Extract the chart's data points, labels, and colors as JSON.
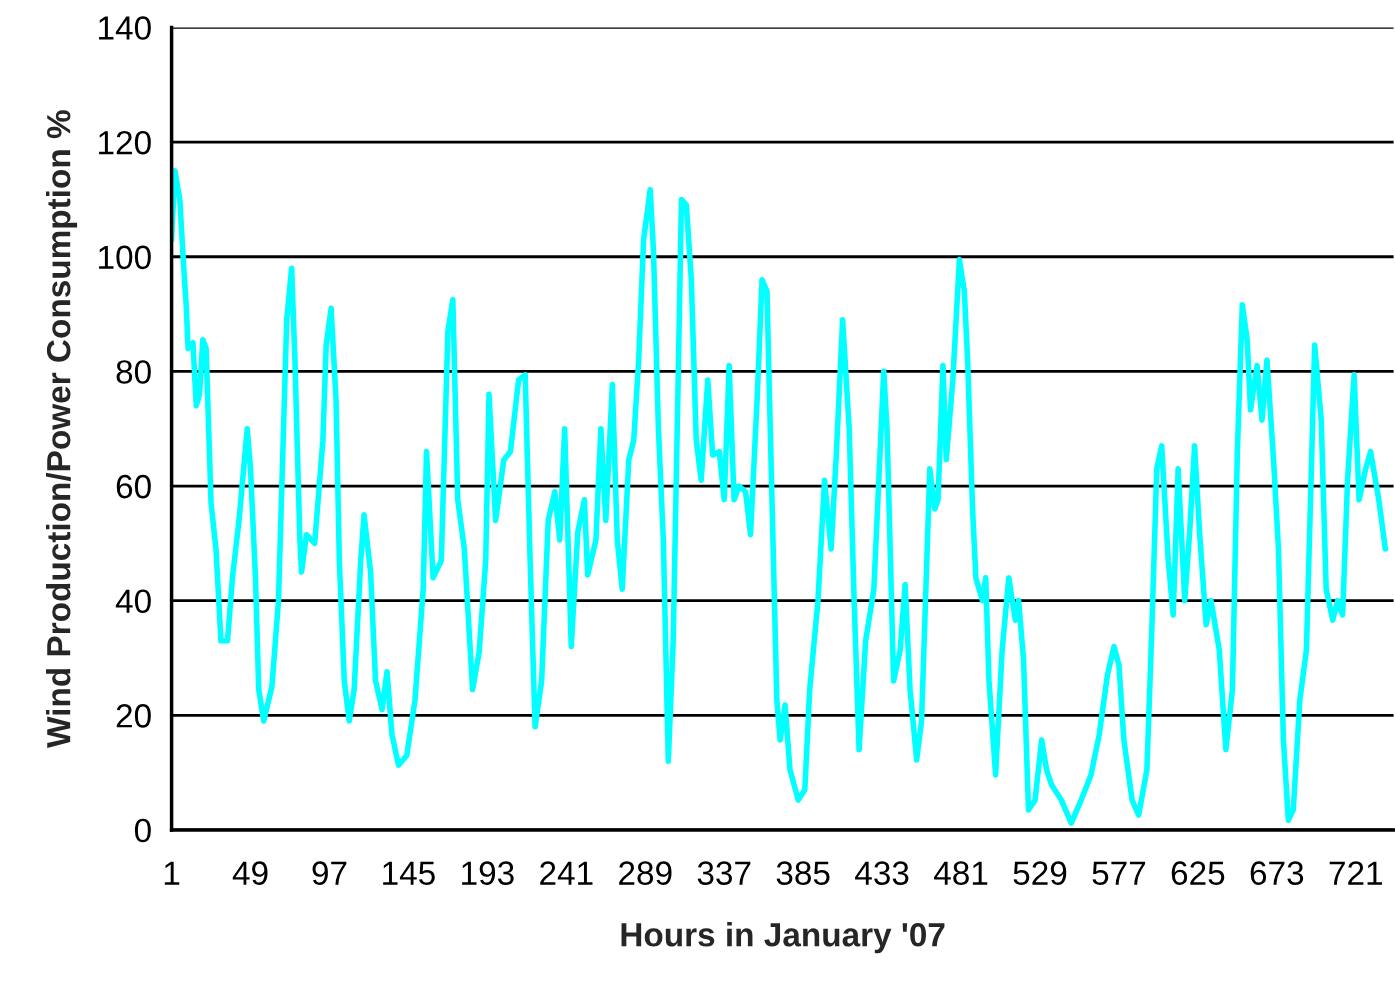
{
  "chart_data": {
    "type": "line",
    "xlabel": "Hours in January '07",
    "ylabel": "Wind Production/Power Consumption %",
    "xlim": [
      1,
      744
    ],
    "ylim": [
      0,
      140
    ],
    "xticks": [
      1,
      49,
      97,
      145,
      193,
      241,
      289,
      337,
      385,
      433,
      481,
      529,
      577,
      625,
      673,
      721
    ],
    "yticks": [
      0,
      20,
      40,
      60,
      80,
      100,
      120,
      140
    ],
    "grid": "y",
    "legend": false,
    "marker": "none",
    "line_style": "solid",
    "series": [
      {
        "color": "#00ffff",
        "x": [
          1,
          3,
          6,
          8,
          10,
          11,
          14,
          16,
          18,
          20,
          22,
          25,
          28,
          31,
          35,
          38,
          42,
          47,
          49,
          52,
          54,
          57,
          62,
          66,
          71,
          74,
          76,
          79,
          80,
          83,
          88,
          93,
          95,
          98,
          101,
          103,
          106,
          109,
          112,
          116,
          118,
          122,
          125,
          129,
          132,
          135,
          139,
          144,
          149,
          154,
          156,
          160,
          165,
          169,
          172,
          175,
          179,
          184,
          188,
          192,
          194,
          198,
          203,
          207,
          212,
          216,
          219,
          222,
          226,
          230,
          234,
          237,
          240,
          244,
          248,
          252,
          254,
          259,
          262,
          265,
          269,
          272,
          275,
          279,
          282,
          285,
          288,
          292,
          294,
          297,
          300,
          303,
          306,
          309,
          311,
          314,
          317,
          320,
          323,
          327,
          330,
          334,
          337,
          340,
          343,
          346,
          350,
          353,
          357,
          360,
          363,
          365,
          369,
          371,
          374,
          377,
          382,
          386,
          389,
          394,
          398,
          402,
          405,
          409,
          413,
          416,
          419,
          423,
          428,
          434,
          436,
          440,
          444,
          447,
          450,
          454,
          457,
          462,
          465,
          467,
          470,
          472,
          476,
          480,
          483,
          485,
          488,
          490,
          494,
          496,
          498,
          502,
          506,
          510,
          514,
          516,
          519,
          522,
          526,
          530,
          533,
          536,
          542,
          548,
          554,
          560,
          565,
          570,
          574,
          577,
          580,
          585,
          589,
          594,
          597,
          600,
          603,
          607,
          610,
          613,
          617,
          620,
          623,
          626,
          630,
          633,
          638,
          642,
          646,
          649,
          652,
          655,
          657,
          661,
          664,
          667,
          671,
          674,
          677,
          680,
          683,
          687,
          691,
          694,
          696,
          700,
          703,
          707,
          710,
          713,
          716,
          720,
          723,
          727,
          730,
          735,
          739
        ],
        "values": [
          103,
          115,
          110,
          100,
          91,
          84,
          85,
          74,
          76,
          85.5,
          84,
          57,
          49,
          33,
          33,
          44,
          54,
          70,
          63,
          44,
          24.5,
          19,
          25,
          40,
          89,
          98,
          82,
          50.6,
          45,
          51.5,
          50,
          68,
          84.6,
          91,
          75,
          47,
          26,
          19,
          24.5,
          47,
          55,
          45,
          26,
          21,
          27.6,
          16.6,
          11.3,
          13,
          22.7,
          42,
          66,
          44,
          47,
          87,
          92.5,
          57.6,
          49,
          24.5,
          31,
          47,
          76,
          54,
          64.6,
          66,
          78.5,
          79.4,
          47,
          18,
          26,
          54,
          59,
          50.6,
          70,
          32,
          52,
          57.6,
          44.5,
          50.6,
          70,
          54,
          77.7,
          50.6,
          42,
          64.6,
          68,
          82,
          103,
          111.7,
          101,
          70,
          50.6,
          12,
          33,
          78.5,
          110,
          109,
          96,
          68,
          61,
          78.5,
          65.4,
          66,
          57.6,
          81,
          57.6,
          60,
          59,
          51.5,
          75,
          96,
          94,
          70,
          22.7,
          15.7,
          21.8,
          10.5,
          5.2,
          7,
          24.5,
          40,
          61,
          49,
          64.6,
          89,
          70,
          40,
          14,
          33,
          42,
          80,
          70,
          26,
          31.4,
          42.8,
          24.5,
          12.2,
          19,
          63,
          56,
          57.6,
          81,
          64.6,
          78.5,
          99.5,
          94,
          82,
          56,
          44,
          40,
          44,
          26,
          9.6,
          31.4,
          44,
          36.6,
          40,
          29.7,
          3.5,
          5.2,
          15.7,
          10.5,
          7.9,
          5.2,
          1.2,
          5.2,
          9.6,
          16.6,
          27,
          32,
          28.8,
          15.7,
          5.2,
          2.6,
          10.5,
          35,
          63,
          67,
          47,
          37.5,
          63,
          40,
          52,
          67,
          52,
          35.8,
          40,
          31.4,
          14,
          24.5,
          66,
          91.6,
          85.5,
          73.3,
          81,
          71.5,
          82,
          64.6,
          49,
          15.7,
          1.7,
          3.5,
          22.7,
          31.4,
          63,
          84.6,
          71.5,
          42,
          36.6,
          40,
          37.5,
          61,
          79.4,
          57.6,
          63,
          66,
          57.6,
          49
        ]
      }
    ]
  }
}
